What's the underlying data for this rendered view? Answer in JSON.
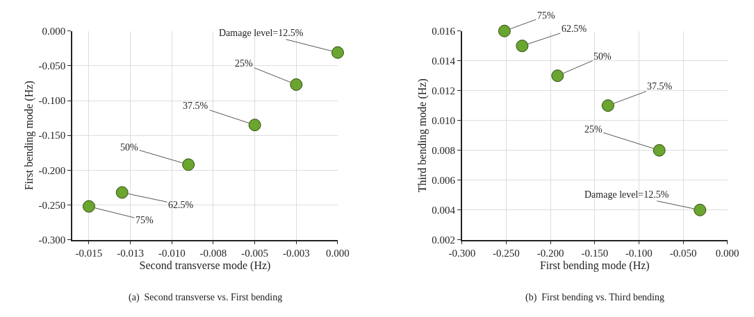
{
  "chart_data": [
    {
      "type": "scatter",
      "title": "(a)  Second transverse vs. First bending",
      "xlabel": "Second transverse mode (Hz)",
      "ylabel": "First bending mode (Hz)",
      "x": [
        0.0,
        -0.0025,
        -0.005,
        -0.009,
        -0.013,
        -0.015
      ],
      "series": [
        {
          "color": "#6aa52f",
          "values": [
            -0.031,
            -0.077,
            -0.135,
            -0.192,
            -0.232,
            -0.252
          ]
        }
      ],
      "xlim": [
        -0.016,
        0.0
      ],
      "xticks": [
        {
          "value": -0.015,
          "label": "-0.015"
        },
        {
          "value": -0.0125,
          "label": "-0.013"
        },
        {
          "value": -0.01,
          "label": "-0.010"
        },
        {
          "value": -0.0075,
          "label": "-0.008"
        },
        {
          "value": -0.005,
          "label": "-0.005"
        },
        {
          "value": -0.0025,
          "label": "-0.003"
        },
        {
          "value": 0.0,
          "label": "0.000"
        }
      ],
      "ylim": [
        -0.3,
        0.0
      ],
      "yticks": [
        {
          "value": -0.3,
          "label": "-0.300"
        },
        {
          "value": -0.25,
          "label": "-0.250"
        },
        {
          "value": -0.2,
          "label": "-0.200"
        },
        {
          "value": -0.15,
          "label": "-0.150"
        },
        {
          "value": -0.1,
          "label": "-0.100"
        },
        {
          "value": -0.05,
          "label": "-0.050"
        },
        {
          "value": 0.0,
          "label": "0.000"
        }
      ],
      "grid": true,
      "marker": "circle",
      "annotations": [
        {
          "text": "Damage level=12.5%",
          "x": 0.0,
          "y": -0.031
        },
        {
          "text": "25%",
          "x": -0.0025,
          "y": -0.077
        },
        {
          "text": "37.5%",
          "x": -0.005,
          "y": -0.135
        },
        {
          "text": "50%",
          "x": -0.009,
          "y": -0.192
        },
        {
          "text": "62.5%",
          "x": -0.013,
          "y": -0.232
        },
        {
          "text": "75%",
          "x": -0.015,
          "y": -0.252
        }
      ]
    },
    {
      "type": "scatter",
      "title": "(b)  First bending vs. Third bending",
      "xlabel": "First bending mode (Hz)",
      "ylabel": "Third bending mode (Hz)",
      "x": [
        -0.031,
        -0.077,
        -0.135,
        -0.192,
        -0.232,
        -0.252
      ],
      "series": [
        {
          "color": "#6aa52f",
          "values": [
            0.004,
            0.008,
            0.011,
            0.013,
            0.015,
            0.016
          ]
        }
      ],
      "xlim": [
        -0.3,
        0.0
      ],
      "xticks": [
        {
          "value": -0.3,
          "label": "-0.300"
        },
        {
          "value": -0.25,
          "label": "-0.250"
        },
        {
          "value": -0.2,
          "label": "-0.200"
        },
        {
          "value": -0.15,
          "label": "-0.150"
        },
        {
          "value": -0.1,
          "label": "-0.100"
        },
        {
          "value": -0.05,
          "label": "-0.050"
        },
        {
          "value": 0.0,
          "label": "0.000"
        }
      ],
      "ylim": [
        0.002,
        0.016
      ],
      "yticks": [
        {
          "value": 0.002,
          "label": "0.002"
        },
        {
          "value": 0.004,
          "label": "0.004"
        },
        {
          "value": 0.006,
          "label": "0.006"
        },
        {
          "value": 0.008,
          "label": "0.008"
        },
        {
          "value": 0.01,
          "label": "0.010"
        },
        {
          "value": 0.012,
          "label": "0.012"
        },
        {
          "value": 0.014,
          "label": "0.014"
        },
        {
          "value": 0.016,
          "label": "0.016"
        }
      ],
      "grid": true,
      "marker": "circle",
      "annotations": [
        {
          "text": "Damage level=12.5%",
          "x": -0.031,
          "y": 0.004
        },
        {
          "text": "25%",
          "x": -0.077,
          "y": 0.008
        },
        {
          "text": "37.5%",
          "x": -0.135,
          "y": 0.011
        },
        {
          "text": "50%",
          "x": -0.192,
          "y": 0.013
        },
        {
          "text": "62.5%",
          "x": -0.232,
          "y": 0.015
        },
        {
          "text": "75%",
          "x": -0.252,
          "y": 0.016
        }
      ]
    }
  ]
}
